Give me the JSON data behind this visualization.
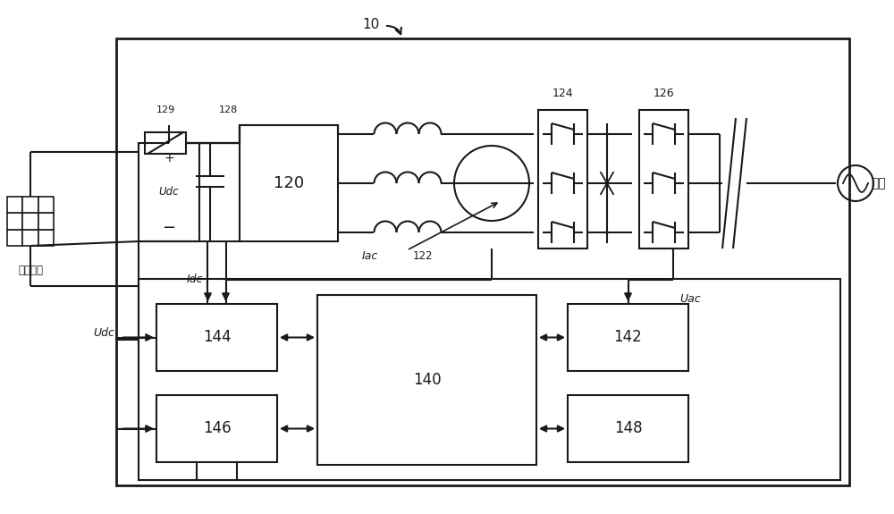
{
  "bg_color": "#ffffff",
  "line_color": "#1a1a1a",
  "lw": 1.5,
  "labels": {
    "10": "10",
    "dc_source": "直流电源",
    "grid": "电网",
    "120": "120",
    "122": "122",
    "124": "124",
    "126": "126",
    "128": "128",
    "129": "129",
    "140": "140",
    "142": "142",
    "144": "144",
    "146": "146",
    "148": "148",
    "iac": "Iac",
    "idc": "Idc",
    "udc": "Udc",
    "uac": "Uac"
  }
}
